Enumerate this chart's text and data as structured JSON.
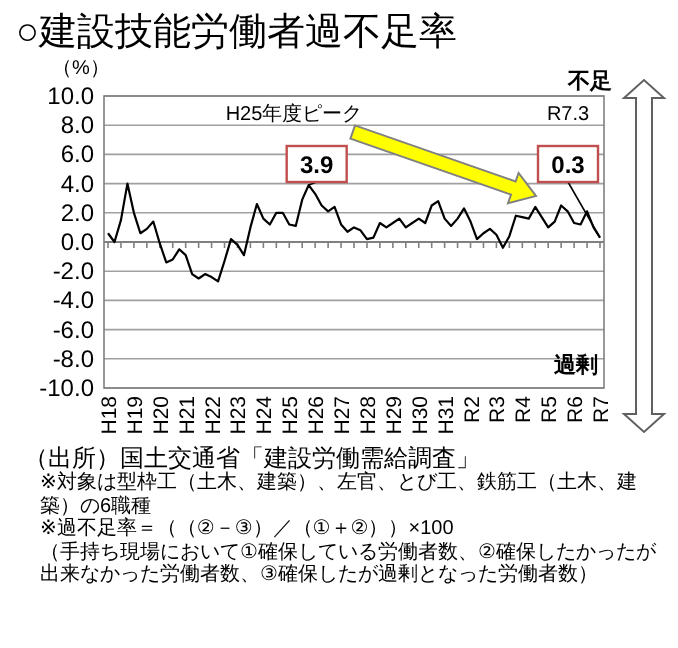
{
  "chart_data": {
    "type": "line",
    "title": "○建設技能労働者過不足率",
    "ylabel": "（%）",
    "categories": [
      "H18",
      null,
      null,
      null,
      "H19",
      null,
      null,
      null,
      "H20",
      null,
      null,
      null,
      "H21",
      null,
      null,
      null,
      "H22",
      null,
      null,
      null,
      "H23",
      null,
      null,
      null,
      "H24",
      null,
      null,
      null,
      "H25",
      null,
      null,
      null,
      "H26",
      null,
      null,
      null,
      "H27",
      null,
      null,
      null,
      "H28",
      null,
      null,
      null,
      "H29",
      null,
      null,
      null,
      "H30",
      null,
      null,
      null,
      "H31",
      null,
      null,
      null,
      "R2",
      null,
      null,
      null,
      "R3",
      null,
      null,
      null,
      "R4",
      null,
      null,
      null,
      "R5",
      null,
      null,
      null,
      "R6",
      null,
      null,
      null,
      "R7"
    ],
    "ylim": [
      -10,
      10
    ],
    "yticks": [
      {
        "value": -10,
        "label": "-10.0"
      },
      {
        "value": -8,
        "label": "-8.0"
      },
      {
        "value": -6,
        "label": "-6.0"
      },
      {
        "value": -4,
        "label": "-4.0"
      },
      {
        "value": -2,
        "label": "-2.0"
      },
      {
        "value": 0,
        "label": "0.0"
      },
      {
        "value": 2,
        "label": "2.0"
      },
      {
        "value": 4,
        "label": "4.0"
      },
      {
        "value": 6,
        "label": "6.0"
      },
      {
        "value": 8,
        "label": "8.0"
      },
      {
        "value": 10,
        "label": "10.0"
      }
    ],
    "grid": "y",
    "marker": "none",
    "series": [
      {
        "color": "#000000",
        "values": [
          0.6,
          0.0,
          1.5,
          4.0,
          2.0,
          0.6,
          0.9,
          1.4,
          -0.1,
          -1.4,
          -1.2,
          -0.5,
          -0.9,
          -2.2,
          -2.5,
          -2.2,
          -2.4,
          -2.7,
          -1.3,
          0.2,
          -0.2,
          -0.9,
          1.0,
          2.6,
          1.6,
          1.2,
          2.0,
          2.0,
          1.2,
          1.1,
          2.9,
          3.9,
          3.3,
          2.5,
          2.1,
          2.4,
          1.2,
          0.7,
          1.0,
          0.8,
          0.2,
          0.3,
          1.3,
          1.0,
          1.3,
          1.6,
          1.0,
          1.3,
          1.6,
          1.3,
          2.5,
          2.8,
          1.6,
          1.1,
          1.6,
          2.3,
          1.4,
          0.2,
          0.6,
          0.9,
          0.5,
          -0.4,
          0.4,
          1.8,
          1.7,
          1.6,
          2.4,
          1.7,
          1.0,
          1.4,
          2.5,
          2.1,
          1.3,
          1.2,
          2.1,
          1.0,
          0.3
        ]
      }
    ],
    "annotations": [
      "H25年度ピーク",
      "R7.3",
      "不足",
      "過剰",
      "3.9",
      "0.3",
      "（出所）国土交通省「建設労働需給調査」",
      "※対象は型枠工（土木、建築）、左官、とび工、鉄筋工（土木、建築）の6職種",
      "※過不足率＝（（②－③）／（①＋②））×100",
      "（手持ち現場において①確保している労働者数、②確保したかったが出来なかった労働者数、③確保したが過剰となった労働者数）"
    ]
  }
}
